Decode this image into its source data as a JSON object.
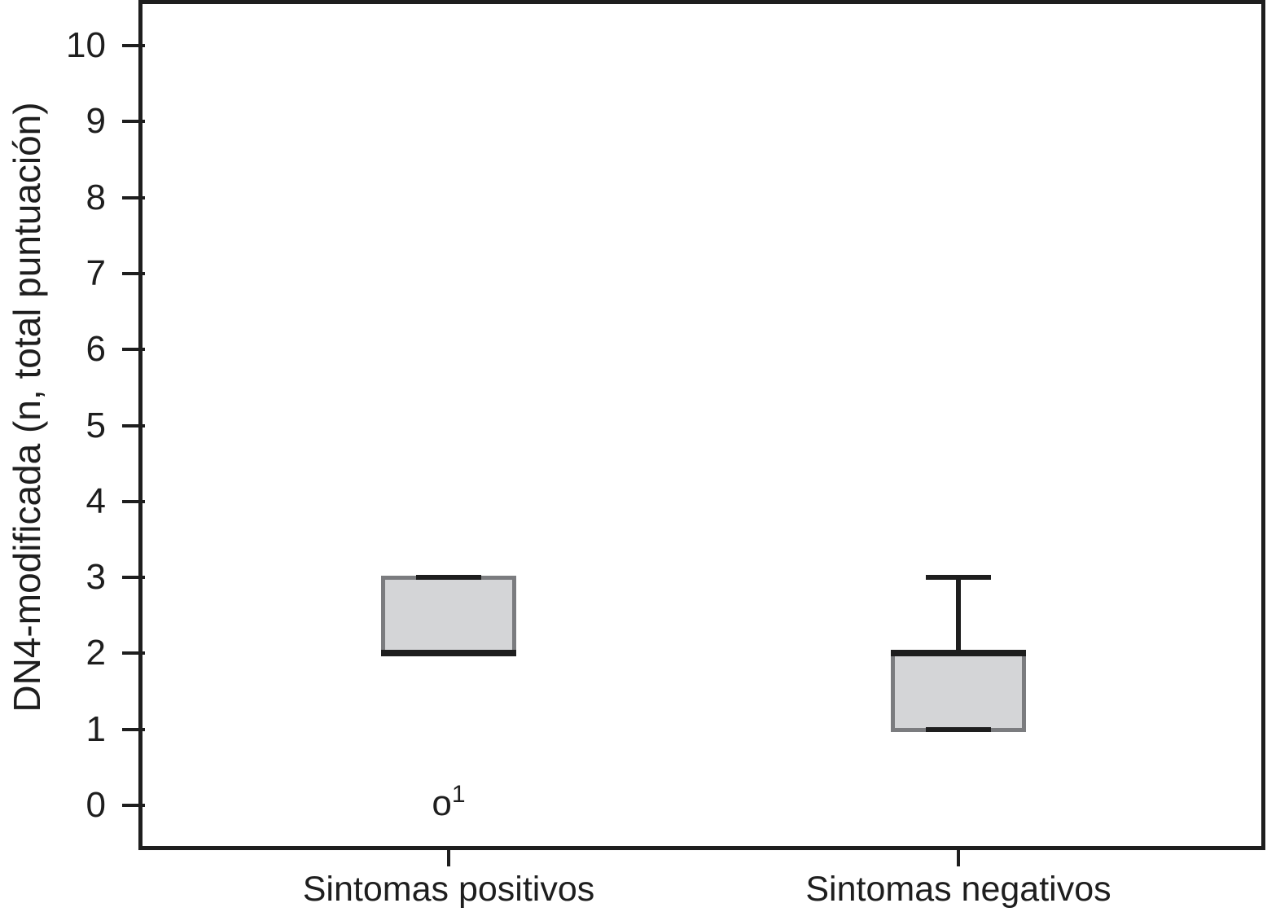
{
  "figure": {
    "background": "#ffffff",
    "frame_color": "#1e1e1e"
  },
  "chart_data": {
    "type": "box",
    "title": "",
    "xlabel": "",
    "ylabel": "DN4-modificada (n, total puntuación)",
    "categories": [
      "Sintomas positivos",
      "Sintomas negativos"
    ],
    "yticks": [
      0,
      1,
      2,
      3,
      4,
      5,
      6,
      7,
      8,
      9,
      10
    ],
    "ylim": [
      -0.6,
      10.6
    ],
    "grid": false,
    "legend": "none",
    "box_fill": "#d4d5d7",
    "box_border": "#7b7c7f",
    "line_color": "#1e1e1e",
    "series": [
      {
        "name": "Sintomas positivos",
        "q1": 2,
        "median": 2,
        "q3": 3,
        "whisker_low": 2,
        "whisker_high": 3,
        "outliers": [
          {
            "value": 0,
            "marker": "o",
            "case_label": "1"
          }
        ]
      },
      {
        "name": "Sintomas negativos",
        "q1": 1,
        "median": 2,
        "q3": 2,
        "whisker_low": 1,
        "whisker_high": 3,
        "outliers": []
      }
    ]
  }
}
